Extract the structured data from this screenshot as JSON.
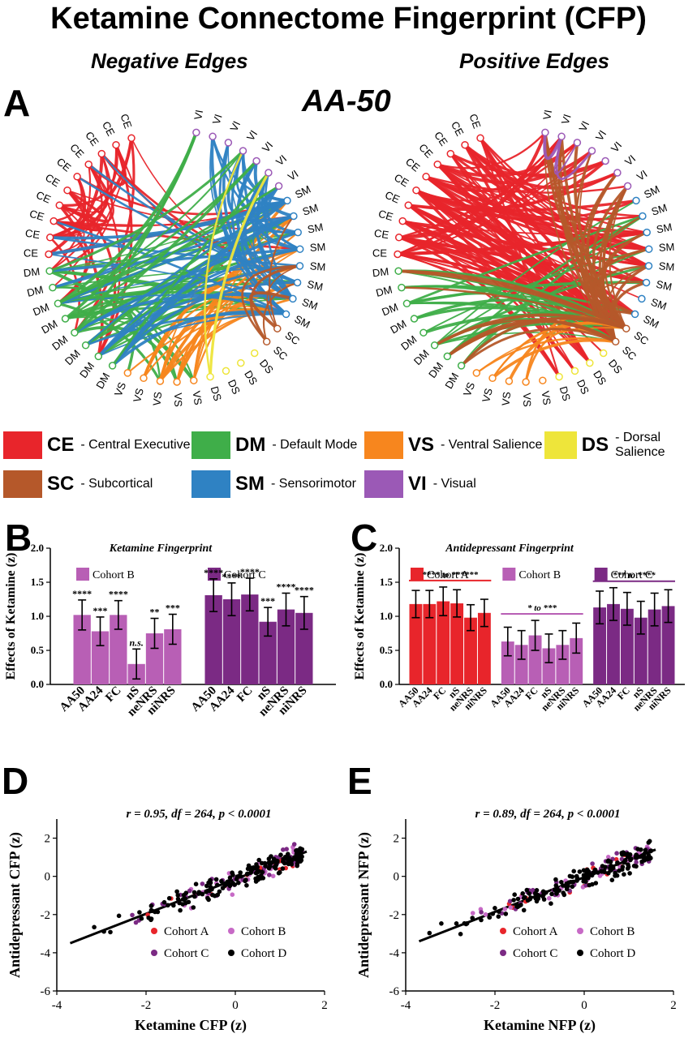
{
  "title": "Ketamine Connectome Fingerprint (CFP)",
  "panelA": {
    "letter": "A",
    "center_label": "AA-50",
    "negative_title": "Negative Edges",
    "positive_title": "Positive Edges",
    "nodes": [
      "VI",
      "VI",
      "VI",
      "VI",
      "VI",
      "VI",
      "VI",
      "SM",
      "SM",
      "SM",
      "SM",
      "SM",
      "SM",
      "SM",
      "SM",
      "SC",
      "SC",
      "DS",
      "DS",
      "DS",
      "DS",
      "VS",
      "VS",
      "VS",
      "VS",
      "VS",
      "DM",
      "DM",
      "DM",
      "DM",
      "DM",
      "DM",
      "DM",
      "DM",
      "CE",
      "CE",
      "CE",
      "CE",
      "CE",
      "CE",
      "CE",
      "CE",
      "CE",
      "CE"
    ]
  },
  "legend": [
    {
      "code": "CE",
      "name": "- Central Executive",
      "color": "#e8252b"
    },
    {
      "code": "DM",
      "name": "- Default Mode",
      "color": "#3fae49"
    },
    {
      "code": "VS",
      "name": "- Ventral Salience",
      "color": "#f7861e"
    },
    {
      "code": "DS",
      "name": "- Dorsal Salience",
      "color": "#eee53a"
    },
    {
      "code": "SC",
      "name": "- Subcortical",
      "color": "#b5582a"
    },
    {
      "code": "SM",
      "name": "- Sensorimotor",
      "color": "#2f82c3"
    },
    {
      "code": "VI",
      "name": "- Visual",
      "color": "#9b59b6"
    }
  ],
  "chart_data": [
    {
      "panel": "B",
      "type": "bar",
      "title": "Ketamine Fingerprint",
      "ylabel": "Effects of Ketamine (z)",
      "ylim": [
        0,
        2.0
      ],
      "yticks": [
        "0.0",
        "0.5",
        "1.0",
        "1.5",
        "2.0"
      ],
      "groups": [
        {
          "name": "Cohort B",
          "color": "#b85fb5",
          "categories": [
            "AA50",
            "AA24",
            "FC",
            "nS",
            "neNRS",
            "niNRS"
          ],
          "values": [
            1.02,
            0.78,
            1.02,
            0.3,
            0.75,
            0.81
          ],
          "err": [
            0.22,
            0.21,
            0.21,
            0.22,
            0.22,
            0.22
          ],
          "sig": [
            "****",
            "***",
            "****",
            "n.s.",
            "**",
            "***"
          ]
        },
        {
          "name": "Cohort C",
          "color": "#7b2a84",
          "categories": [
            "AA50",
            "AA24",
            "FC",
            "nS",
            "neNRS",
            "niNRS"
          ],
          "values": [
            1.31,
            1.25,
            1.32,
            0.92,
            1.1,
            1.05
          ],
          "err": [
            0.24,
            0.24,
            0.24,
            0.21,
            0.24,
            0.24
          ],
          "sig": [
            "****",
            "****",
            "****",
            "***",
            "****",
            "****"
          ]
        }
      ]
    },
    {
      "panel": "C",
      "type": "bar",
      "title": "Antidepressant Fingerprint",
      "ylabel": "Effects of Ketamine (z)",
      "ylim": [
        0,
        2.0
      ],
      "yticks": [
        "0.0",
        "0.5",
        "1.0",
        "1.5",
        "2.0"
      ],
      "groups": [
        {
          "name": "Cohort A",
          "color": "#e8252b",
          "categories": [
            "AA50",
            "AA24",
            "FC",
            "nS",
            "neNRS",
            "niNRS"
          ],
          "values": [
            1.18,
            1.18,
            1.22,
            1.19,
            0.98,
            1.05
          ],
          "err": [
            0.2,
            0.2,
            0.21,
            0.2,
            0.19,
            0.2
          ],
          "bracket": "**** to ******"
        },
        {
          "name": "Cohort B",
          "color": "#b85fb5",
          "categories": [
            "AA50",
            "AA24",
            "FC",
            "nS",
            "neNRS",
            "niNRS"
          ],
          "values": [
            0.63,
            0.58,
            0.72,
            0.53,
            0.58,
            0.68
          ],
          "err": [
            0.21,
            0.21,
            0.22,
            0.21,
            0.21,
            0.22
          ],
          "bracket": "* to ***"
        },
        {
          "name": "Cohort C",
          "color": "#7b2a84",
          "categories": [
            "AA50",
            "AA24",
            "FC",
            "nS",
            "neNRS",
            "niNRS"
          ],
          "values": [
            1.13,
            1.18,
            1.11,
            0.98,
            1.1,
            1.15
          ],
          "err": [
            0.24,
            0.24,
            0.24,
            0.24,
            0.24,
            0.24
          ],
          "bracket": "*** to ****"
        }
      ]
    },
    {
      "panel": "D",
      "type": "scatter",
      "annotation": "r = 0.95, df = 264, p < 0.0001",
      "xlabel": "Ketamine CFP (z)",
      "ylabel": "Antidepressant CFP (z)",
      "xlim": [
        -4,
        2
      ],
      "ylim": [
        -6,
        3
      ],
      "xticks": [
        "-4",
        "-2",
        "0",
        "2"
      ],
      "yticks": [
        "2",
        "0",
        "-2",
        "-4",
        "-6"
      ],
      "fit": {
        "x": [
          -3.7,
          1.6
        ],
        "y": [
          -3.5,
          1.3
        ]
      },
      "series": [
        {
          "name": "Cohort A",
          "color": "#e8252b"
        },
        {
          "name": "Cohort B",
          "color": "#c76ac6"
        },
        {
          "name": "Cohort C",
          "color": "#7b2a84"
        },
        {
          "name": "Cohort D",
          "color": "#000000"
        }
      ]
    },
    {
      "panel": "E",
      "type": "scatter",
      "annotation": "r = 0.89, df = 264, p < 0.0001",
      "xlabel": "Ketamine NFP (z)",
      "ylabel": "Antidepressant NFP (z)",
      "xlim": [
        -4,
        2
      ],
      "ylim": [
        -6,
        3
      ],
      "xticks": [
        "-4",
        "-2",
        "0",
        "2"
      ],
      "yticks": [
        "2",
        "0",
        "-2",
        "-4",
        "-6"
      ],
      "fit": {
        "x": [
          -3.7,
          1.6
        ],
        "y": [
          -3.4,
          1.4
        ]
      },
      "series": [
        {
          "name": "Cohort A",
          "color": "#e8252b"
        },
        {
          "name": "Cohort B",
          "color": "#c76ac6"
        },
        {
          "name": "Cohort C",
          "color": "#7b2a84"
        },
        {
          "name": "Cohort D",
          "color": "#000000"
        }
      ]
    }
  ]
}
